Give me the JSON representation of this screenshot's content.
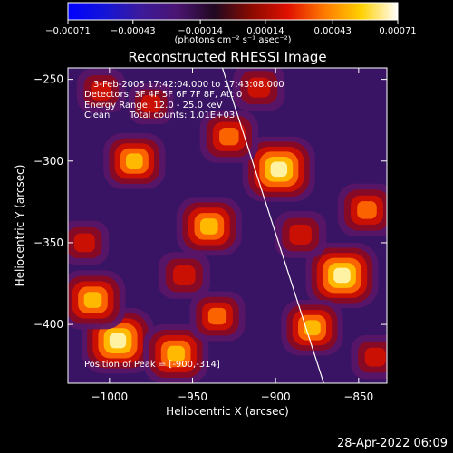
{
  "chart_data": {
    "type": "heatmap",
    "title": "Reconstructed RHESSI Image",
    "xlabel": "Heliocentric X (arcsec)",
    "ylabel": "Heliocentric Y (arcsec)",
    "xlim": [
      -1025,
      -833
    ],
    "ylim": [
      -436,
      -243
    ],
    "x_ticks": [
      -1000,
      -950,
      -900,
      -850
    ],
    "y_ticks": [
      -250,
      -300,
      -350,
      -400
    ],
    "x_tick_labels": [
      "−1000",
      "−950",
      "−900",
      "−850"
    ],
    "y_tick_labels": [
      "−250",
      "−300",
      "−350",
      "−400"
    ],
    "colorbar": {
      "range": [
        -0.00071,
        0.00071
      ],
      "ticks": [
        -0.00071,
        -0.00043,
        -0.00014,
        0.00014,
        0.00043,
        0.00071
      ],
      "tick_labels": [
        "−0.00071",
        "−0.00043",
        "−0.00014",
        "0.00014",
        "0.00043",
        "0.00071"
      ],
      "label": "(photons cm⁻² s⁻¹ asec⁻²)",
      "stops": [
        "#0000ff",
        "#1414d8",
        "#3c1a9a",
        "#4a1470",
        "#200820",
        "#8a0a00",
        "#e01000",
        "#ff7a00",
        "#ffd000",
        "#ffffff"
      ]
    },
    "limb_line": {
      "x_top": -932,
      "x_bottom": -871
    },
    "sources": [
      {
        "x": -995,
        "y": -410,
        "value": 0.00071
      },
      {
        "x": -1010,
        "y": -385,
        "value": 0.0006
      },
      {
        "x": -960,
        "y": -418,
        "value": 0.0006
      },
      {
        "x": -1015,
        "y": -350,
        "value": 0.00035
      },
      {
        "x": -898,
        "y": -305,
        "value": 0.00071
      },
      {
        "x": -928,
        "y": -285,
        "value": 0.0005
      },
      {
        "x": -940,
        "y": -340,
        "value": 0.0006
      },
      {
        "x": -955,
        "y": -370,
        "value": 0.0004
      },
      {
        "x": -860,
        "y": -370,
        "value": 0.00071
      },
      {
        "x": -878,
        "y": -402,
        "value": 0.00055
      },
      {
        "x": -845,
        "y": -330,
        "value": 0.0005
      },
      {
        "x": -885,
        "y": -345,
        "value": 0.0004
      },
      {
        "x": -985,
        "y": -300,
        "value": 0.00055
      },
      {
        "x": -975,
        "y": -265,
        "value": 0.0003
      },
      {
        "x": -910,
        "y": -255,
        "value": 0.0004
      },
      {
        "x": -1005,
        "y": -257,
        "value": 0.00035
      },
      {
        "x": -935,
        "y": -395,
        "value": 0.00045
      },
      {
        "x": -840,
        "y": -420,
        "value": 0.00035
      }
    ],
    "annotations": {
      "time": "3-Feb-2005 17:42:04.000 to 17:43:08.000",
      "detectors": "Detectors: 3F 4F 5F 6F 7F 8F, Att 0",
      "energy": "Energy Range: 12.0 - 25.0 keV",
      "method": "Clean",
      "counts": "Total counts: 1.01E+03",
      "peak": "Position of Peak = [-900,-314]"
    }
  },
  "footer": {
    "date": "28-Apr-2022 06:09"
  }
}
